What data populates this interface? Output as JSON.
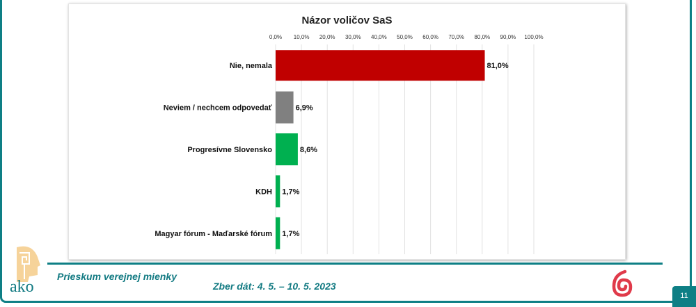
{
  "chart_data": {
    "type": "bar",
    "orientation": "horizontal",
    "title": "Názor voličov SaS",
    "categories": [
      "Nie, nemala",
      "Neviem / nechcem odpovedať",
      "Progresívne Slovensko",
      "KDH",
      "Magyar fórum - Maďarské fórum"
    ],
    "values": [
      81.0,
      6.9,
      8.6,
      1.7,
      1.7
    ],
    "data_labels": [
      "81,0%",
      "6,9%",
      "8,6%",
      "1,7%",
      "1,7%"
    ],
    "colors": [
      "#c00000",
      "#808080",
      "#00b050",
      "#00b050",
      "#00b050"
    ],
    "xlim": [
      0,
      100
    ],
    "ticks": [
      "0,0%",
      "10,0%",
      "20,0%",
      "30,0%",
      "40,0%",
      "50,0%",
      "60,0%",
      "70,0%",
      "80,0%",
      "90,0%",
      "100,0%"
    ],
    "tick_position": "top",
    "grid": true
  },
  "footer": {
    "subtitle": "Prieskum verejnej mienky",
    "date": "Zber dát: 4. 5. – 10. 5. 2023",
    "page_number": "11",
    "logo_text": "ako"
  },
  "colors": {
    "accent": "#0e7f85",
    "logo_red": "#e03a4a",
    "logo_beige": "#f6d39a"
  }
}
